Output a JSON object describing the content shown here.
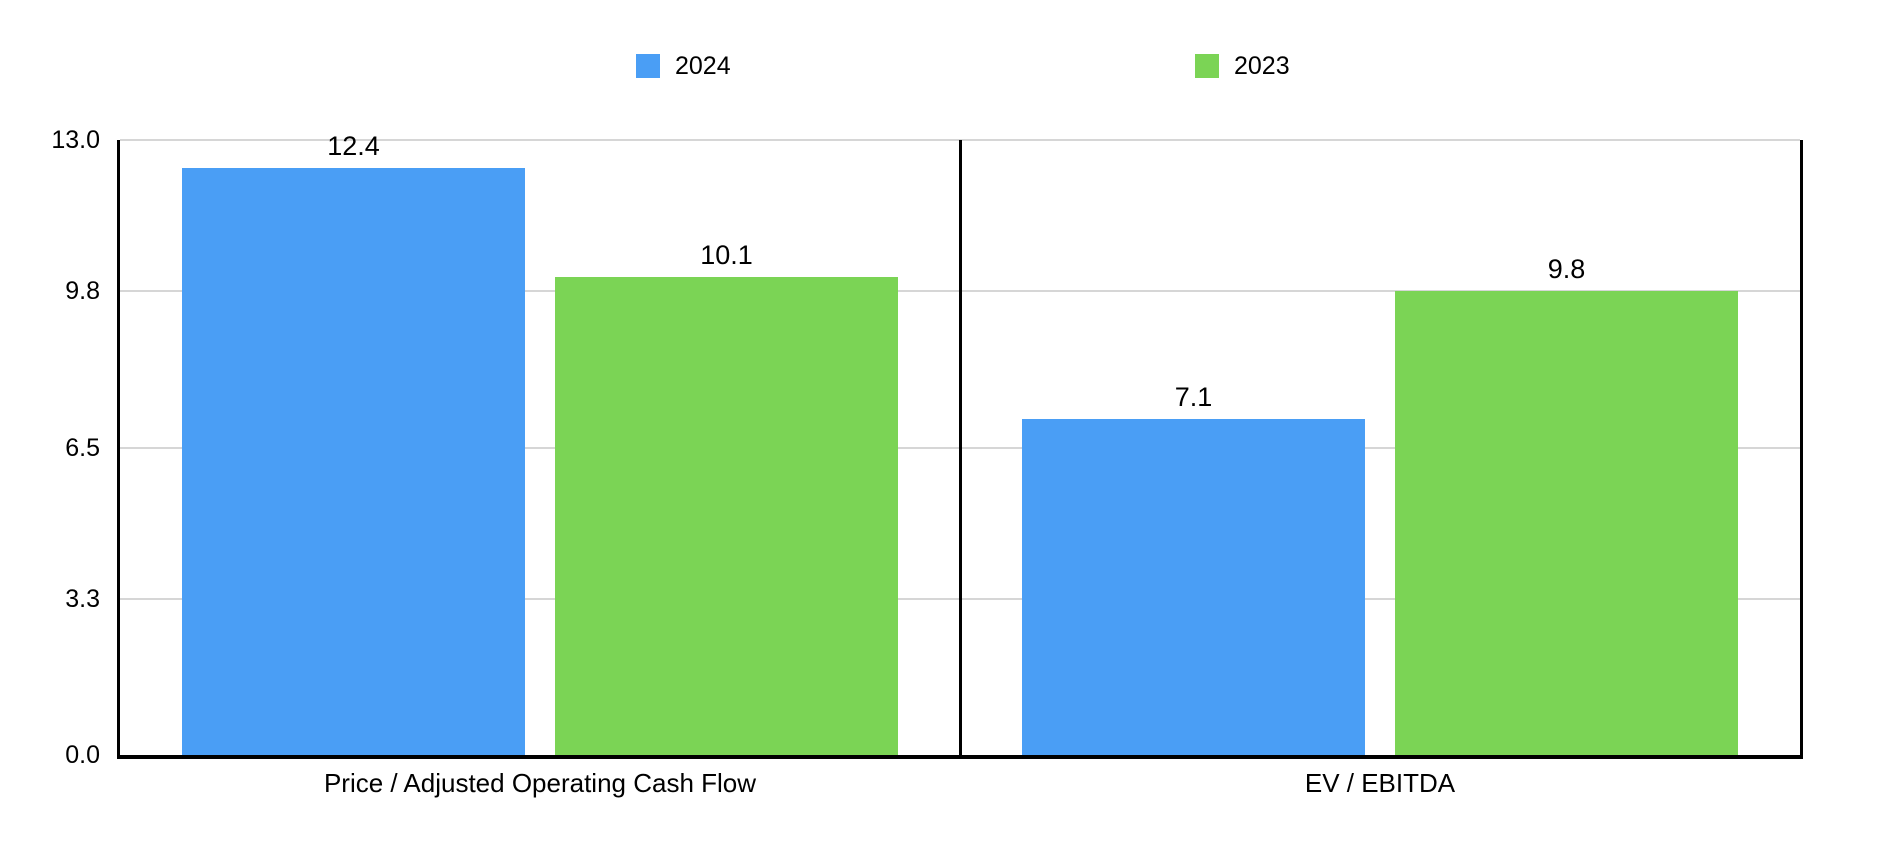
{
  "legend": {
    "items": [
      {
        "label": "2024",
        "color": "#4A9EF5"
      },
      {
        "label": "2023",
        "color": "#7BD455"
      }
    ]
  },
  "chart_data": {
    "type": "bar",
    "categories": [
      "Price / Adjusted Operating Cash Flow",
      "EV / EBITDA"
    ],
    "series": [
      {
        "name": "2024",
        "color": "#4A9EF5",
        "values": [
          12.4,
          7.1
        ]
      },
      {
        "name": "2023",
        "color": "#7BD455",
        "values": [
          10.1,
          9.8
        ]
      }
    ],
    "bar_value_labels": [
      [
        "12.4",
        "7.1"
      ],
      [
        "10.1",
        "9.8"
      ]
    ],
    "ylim": [
      0,
      13
    ],
    "yticks": [
      {
        "value": 0.0,
        "label": "0.0"
      },
      {
        "value": 3.3,
        "label": "3.3"
      },
      {
        "value": 6.5,
        "label": "6.5"
      },
      {
        "value": 9.8,
        "label": "9.8"
      },
      {
        "value": 13.0,
        "label": "13.0"
      }
    ],
    "grid": true,
    "legend_position": "top",
    "title": "",
    "xlabel": "",
    "ylabel": "",
    "colors": {
      "background": "#FFFFFF",
      "gridline": "#D6D6D6",
      "axis": "#000000",
      "text": "#000000"
    }
  }
}
